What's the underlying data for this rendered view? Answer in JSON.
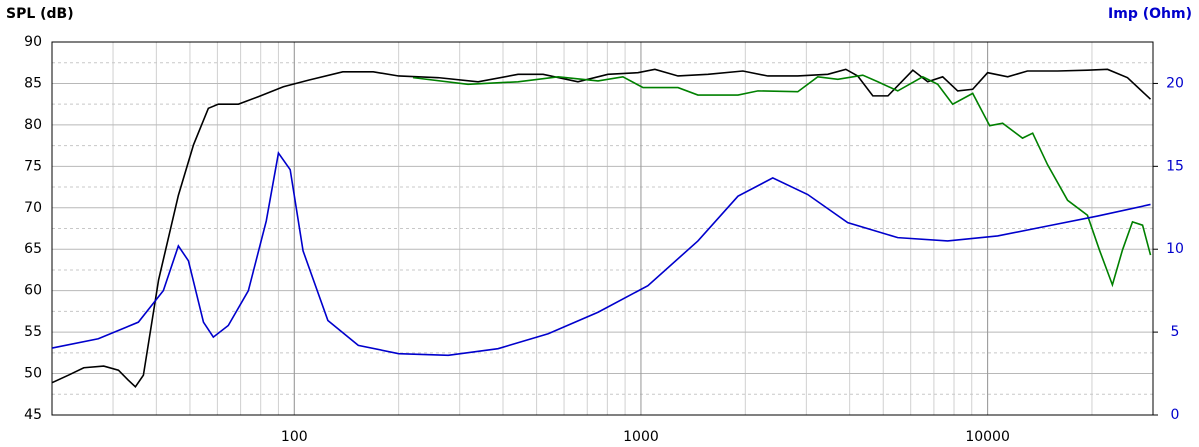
{
  "chart_data": {
    "type": "line",
    "ylabel": "SPL (dB)",
    "y2label": "Imp (Ohm)",
    "xscale": "log",
    "xlim": [
      20,
      30000
    ],
    "xticks": [
      100,
      1000,
      10000
    ],
    "ylim": [
      45,
      90
    ],
    "yticks": [
      45,
      50,
      55,
      60,
      65,
      70,
      75,
      80,
      85,
      90
    ],
    "y2lim": [
      0,
      22.5
    ],
    "y2ticks": [
      0,
      5,
      10,
      15,
      20
    ],
    "grid": true,
    "series": [
      {
        "color": "#000000",
        "x": [
          20,
          22.3,
          24.7,
          28.2,
          31.1,
          33.2,
          34.8,
          36.7,
          40.6,
          46.3,
          51.2,
          56.5,
          60.4,
          69,
          78.7,
          93,
          110,
          138,
          169,
          200,
          260,
          339,
          442,
          522,
          658,
          803,
          980,
          1097,
          1279,
          1561,
          1968,
          2323,
          2834,
          3459,
          3899,
          4221,
          4666,
          5158,
          6085,
          6718,
          7420,
          8199,
          9057,
          10000,
          11430,
          13030,
          15920,
          19410,
          22180,
          25320,
          29510
        ],
        "values": [
          48.9,
          49.8,
          50.7,
          50.9,
          50.4,
          49.2,
          48.4,
          49.8,
          61.3,
          71.5,
          77.6,
          82.0,
          82.5,
          82.5,
          83.4,
          84.6,
          85.4,
          86.4,
          86.4,
          85.9,
          85.7,
          85.2,
          86.1,
          86.1,
          85.2,
          86.1,
          86.3,
          86.7,
          85.9,
          86.1,
          86.5,
          85.9,
          85.9,
          86.1,
          86.7,
          85.9,
          83.5,
          83.5,
          86.6,
          85.2,
          85.8,
          84.1,
          84.3,
          86.3,
          85.8,
          86.5,
          86.5,
          86.6,
          86.7,
          85.7,
          83.1
        ]
      },
      {
        "color": "#008000",
        "x": [
          220,
          317,
          442,
          577,
          752,
          887,
          1014,
          1279,
          1460,
          1905,
          2175,
          2834,
          3236,
          3698,
          4365,
          4822,
          5506,
          6500,
          7178,
          7930,
          9057,
          10140,
          11050,
          12610,
          13490,
          14890,
          17010,
          19410,
          21020,
          22910,
          24490,
          26180,
          27990,
          29510
        ],
        "values": [
          85.7,
          84.9,
          85.2,
          85.8,
          85.3,
          85.8,
          84.5,
          84.5,
          83.6,
          83.6,
          84.1,
          84.0,
          85.8,
          85.5,
          86.0,
          85.2,
          84.1,
          85.8,
          84.9,
          82.5,
          83.8,
          79.9,
          80.2,
          78.4,
          79.0,
          75.2,
          70.9,
          69.1,
          64.9,
          60.7,
          64.9,
          68.3,
          67.9,
          64.3
        ]
      },
      {
        "color": "#0000cc",
        "axis": "y2",
        "x": [
          20,
          27.2,
          35.5,
          41.9,
          46.3,
          49.5,
          54.7,
          58.4,
          64.5,
          73.7,
          83,
          90,
          97.3,
          106,
          125,
          153,
          200,
          278,
          387,
          540,
          752,
          1047,
          1460,
          1905,
          2400,
          3027,
          3950,
          5506,
          7670,
          10690,
          14890,
          20750,
          29510
        ],
        "values": [
          4.04,
          4.6,
          5.6,
          7.5,
          10.2,
          9.3,
          5.6,
          4.7,
          5.4,
          7.5,
          11.7,
          15.8,
          14.8,
          9.9,
          5.7,
          4.2,
          3.7,
          3.6,
          4.0,
          4.9,
          6.2,
          7.8,
          10.5,
          13.2,
          14.3,
          13.3,
          11.6,
          10.7,
          10.5,
          10.8,
          11.4,
          12.0,
          12.7
        ]
      }
    ]
  }
}
